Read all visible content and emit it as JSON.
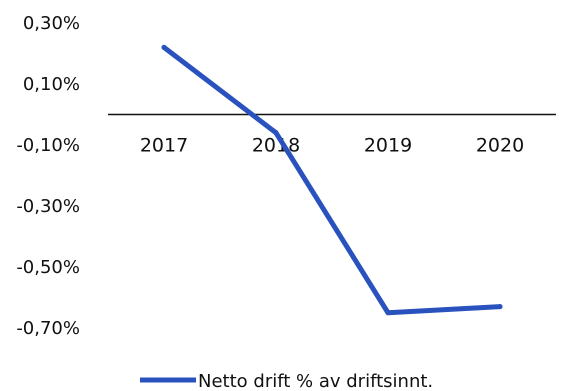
{
  "chart_data": {
    "type": "line",
    "title": "",
    "xlabel": "",
    "ylabel": "",
    "categories": [
      "2017",
      "2018",
      "2019",
      "2020"
    ],
    "series": [
      {
        "name": "Netto drift % av driftsinnt.",
        "values": [
          0.22,
          -0.06,
          -0.65,
          -0.63
        ]
      }
    ],
    "y_ticks": [
      "0,30%",
      "0,10%",
      "-0,10%",
      "-0,30%",
      "-0,50%",
      "-0,70%"
    ],
    "y_tick_values": [
      0.3,
      0.1,
      -0.1,
      -0.3,
      -0.5,
      -0.7
    ],
    "ylim": [
      -0.7,
      0.3
    ],
    "zero_line": true,
    "grid": false,
    "legend_position": "bottom",
    "colors": {
      "series": "#2a52be",
      "axis": "#111111",
      "text": "#111111"
    }
  }
}
